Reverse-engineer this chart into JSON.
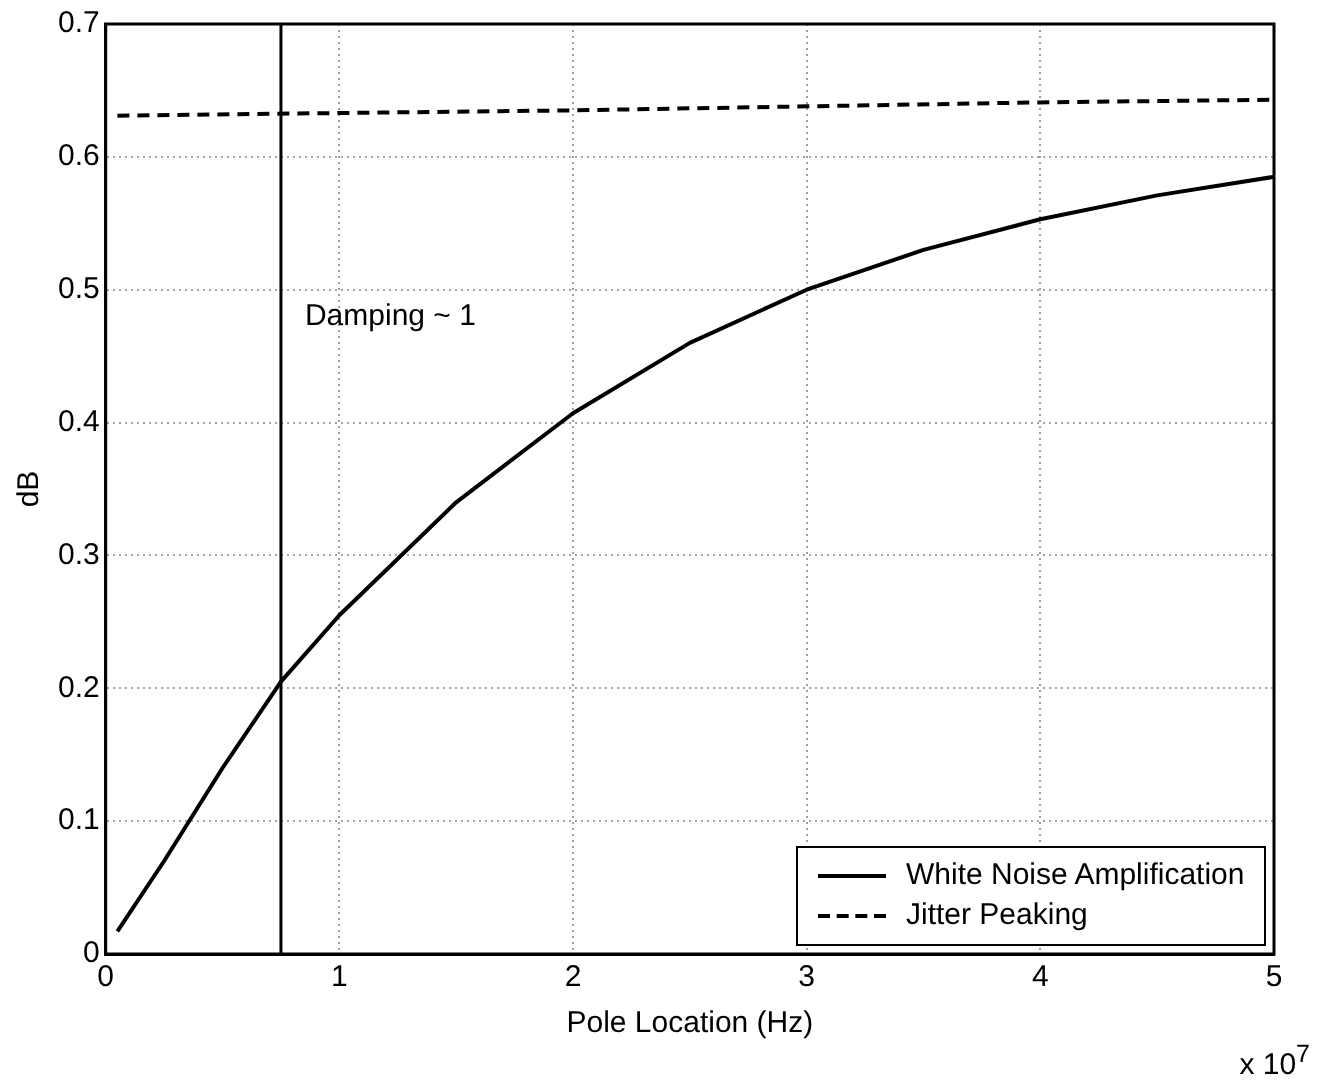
{
  "chart_data": {
    "type": "line",
    "xlabel": "Pole Location (Hz)",
    "ylabel": "dB",
    "xlim": [
      0,
      5
    ],
    "xticks": [
      0,
      1,
      2,
      3,
      4,
      5
    ],
    "ylim": [
      0,
      0.7
    ],
    "yticks": [
      0,
      0.1,
      0.2,
      0.3,
      0.4,
      0.5,
      0.6,
      0.7
    ],
    "grid": true,
    "legend": "bottom right",
    "marker": "none",
    "series": [
      {
        "name": "White Noise Amplification",
        "color": "#000000",
        "line_style": "solid",
        "x": [
          0.05,
          0.25,
          0.5,
          0.75,
          1,
          1.5,
          2,
          2.5,
          3,
          3.5,
          4,
          4.5,
          5
        ],
        "values": [
          0.017,
          0.07,
          0.14,
          0.205,
          0.255,
          0.34,
          0.407,
          0.46,
          0.5,
          0.53,
          0.553,
          0.571,
          0.585
        ]
      },
      {
        "name": "Jitter Peaking",
        "color": "#000000",
        "line_style": "dashed",
        "x": [
          0.05,
          1,
          2,
          3,
          4,
          5
        ],
        "values": [
          0.631,
          0.633,
          0.635,
          0.638,
          0.641,
          0.643
        ]
      }
    ],
    "ref_lines": [
      {
        "axis": "x",
        "value": 0.75,
        "color": "#000000",
        "line_style": "solid"
      }
    ],
    "annotations": [
      {
        "text": "Damping ~ 1",
        "x": 0.75,
        "y": 0.48
      },
      "x 10$^{7}$"
    ]
  }
}
